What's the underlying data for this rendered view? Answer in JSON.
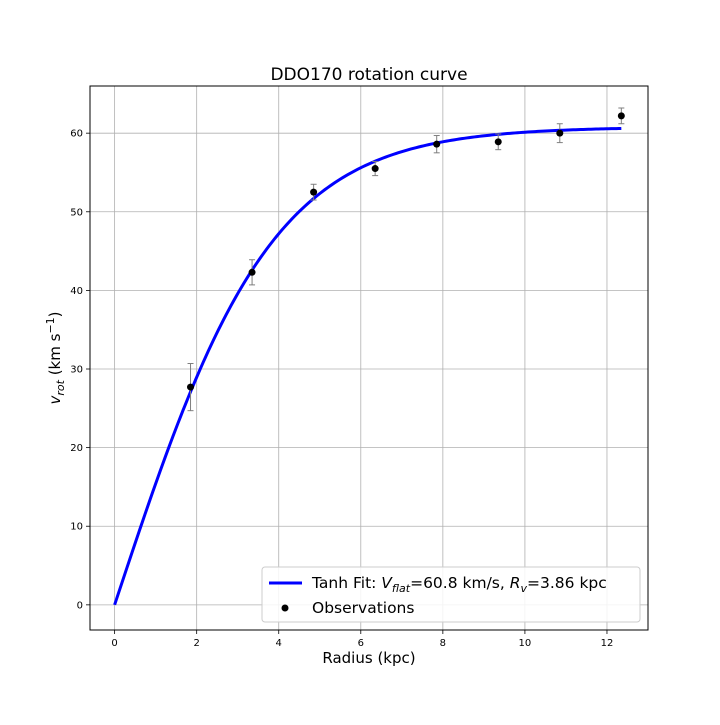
{
  "chart_data": {
    "type": "line",
    "title": "DDO170 rotation curve",
    "xlabel": "Radius (kpc)",
    "ylabel": {
      "base": "v",
      "sub": "rot",
      "pre": " (km s",
      "sup": "−1",
      "post": ")"
    },
    "xlim": [
      -0.6,
      13.0
    ],
    "ylim": [
      -3.2,
      66.0
    ],
    "xticks": [
      0,
      2,
      4,
      6,
      8,
      10,
      12
    ],
    "yticks": [
      0,
      10,
      20,
      30,
      40,
      50,
      60
    ],
    "grid": true,
    "legend_position": "lower-right",
    "series": [
      {
        "kind": "line",
        "color": "#0000ff",
        "model": "tanh",
        "params": {
          "V_flat": 60.8,
          "R_v": 3.86
        },
        "x_range": [
          0,
          12.35
        ],
        "legend": {
          "prefix": "Tanh Fit: ",
          "v_base": "V",
          "v_sub": "flat",
          "v_value": "=60.8 km/s, ",
          "r_base": "R",
          "r_sub": "v",
          "r_value": "=3.86 kpc"
        }
      },
      {
        "kind": "scatter",
        "name": "Observations",
        "color": "#000000",
        "errorbar_color": "#7f7f7f",
        "points": [
          {
            "x": 1.85,
            "y": 27.7,
            "err": 3.0
          },
          {
            "x": 3.35,
            "y": 42.3,
            "err": 1.6
          },
          {
            "x": 4.85,
            "y": 52.5,
            "err": 1.0
          },
          {
            "x": 6.35,
            "y": 55.5,
            "err": 0.9
          },
          {
            "x": 7.85,
            "y": 58.6,
            "err": 1.1
          },
          {
            "x": 9.35,
            "y": 58.9,
            "err": 1.0
          },
          {
            "x": 10.85,
            "y": 60.0,
            "err": 1.2
          },
          {
            "x": 12.35,
            "y": 62.2,
            "err": 1.0
          }
        ]
      }
    ]
  }
}
